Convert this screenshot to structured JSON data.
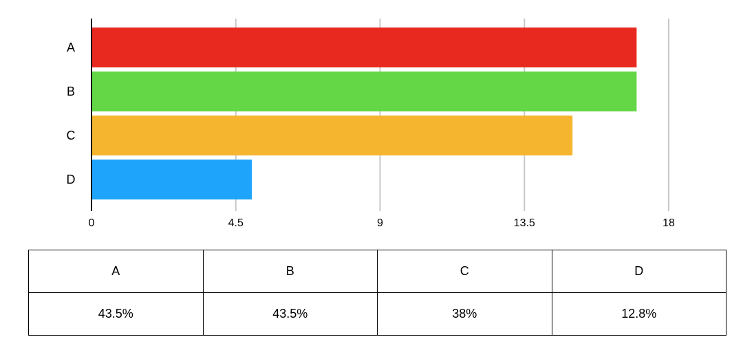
{
  "chart_data": {
    "type": "bar",
    "orientation": "horizontal",
    "categories": [
      "A",
      "B",
      "C",
      "D"
    ],
    "values": [
      17,
      17,
      15,
      5
    ],
    "colors": [
      "#e8291f",
      "#64d747",
      "#f5b52e",
      "#1ea4fb"
    ],
    "xlim": [
      0,
      18
    ],
    "xticks": [
      "0",
      "4.5",
      "9",
      "13.5",
      "18"
    ],
    "xtick_values": [
      0,
      4.5,
      9,
      13.5,
      18
    ],
    "grid": "vertical",
    "legend": "none"
  },
  "table": {
    "headers": [
      "A",
      "B",
      "C",
      "D"
    ],
    "values": [
      "43.5%",
      "43.5%",
      "38%",
      "12.8%"
    ]
  }
}
